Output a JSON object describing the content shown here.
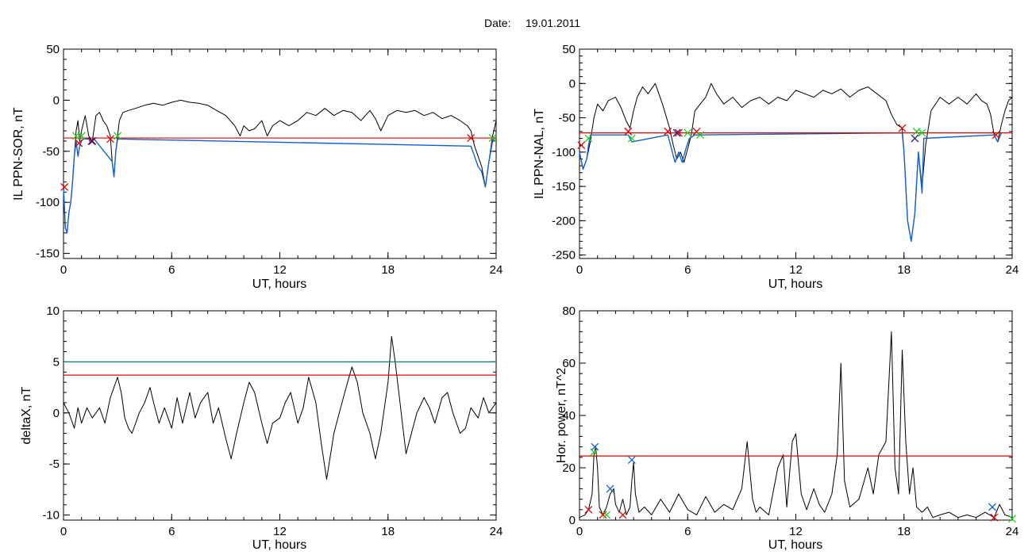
{
  "header": {
    "date_label": "Date:",
    "date_value": "19.01.2011"
  },
  "chart_data": [
    {
      "id": "p1",
      "type": "line",
      "xlabel": "UT, hours",
      "ylabel": "IL PPN-SOR, nT",
      "xlim": [
        0,
        24
      ],
      "ylim": [
        -155,
        50
      ],
      "xticks": [
        0,
        6,
        12,
        18,
        24
      ],
      "yticks": [
        -150,
        -100,
        -50,
        0,
        50
      ],
      "threshold": {
        "value": -37,
        "color": "#e00000"
      },
      "series": [
        {
          "color": "#000000",
          "x": [
            0,
            0.1,
            0.2,
            0.3,
            0.4,
            0.5,
            0.6,
            0.7,
            0.8,
            0.9,
            1.0,
            1.2,
            1.4,
            1.6,
            1.8,
            2.0,
            2.2,
            2.4,
            2.6,
            2.7,
            2.8,
            2.9,
            3.0,
            3.1,
            3.3,
            3.6,
            4.0,
            4.5,
            5.0,
            5.5,
            6.0,
            6.5,
            7.0,
            7.5,
            8.0,
            8.5,
            9.0,
            9.5,
            9.8,
            10.0,
            10.3,
            10.6,
            11.0,
            11.3,
            11.6,
            12.0,
            12.5,
            13.0,
            13.5,
            14.0,
            14.5,
            15.0,
            15.5,
            16.0,
            16.5,
            17.0,
            17.3,
            17.6,
            18.0,
            18.5,
            19.0,
            19.5,
            20.0,
            20.5,
            21.0,
            21.5,
            22.0,
            22.4,
            22.6,
            22.8,
            23.0,
            23.2,
            23.4,
            23.6,
            23.8,
            24.0
          ],
          "y": [
            -85,
            -125,
            -130,
            -110,
            -100,
            -80,
            -55,
            -30,
            -20,
            -40,
            -30,
            -15,
            -35,
            -40,
            -15,
            -12,
            -20,
            -25,
            -35,
            -60,
            -75,
            -50,
            -35,
            -20,
            -12,
            -10,
            -8,
            -5,
            -3,
            -5,
            -2,
            0,
            -2,
            -3,
            -5,
            -10,
            -15,
            -25,
            -35,
            -25,
            -30,
            -28,
            -20,
            -35,
            -25,
            -20,
            -25,
            -20,
            -12,
            -15,
            -8,
            -15,
            -10,
            -12,
            -20,
            -10,
            -18,
            -30,
            -15,
            -10,
            -12,
            -10,
            -15,
            -12,
            -18,
            -15,
            -20,
            -25,
            -30,
            -45,
            -55,
            -65,
            -85,
            -60,
            -35,
            -20
          ]
        },
        {
          "color": "#1060d0",
          "x": [
            0,
            0.1,
            0.2,
            0.3,
            0.4,
            0.5,
            0.6,
            0.7,
            0.8,
            0.9,
            1.0,
            1.1,
            1.4,
            1.5,
            1.6,
            1.7,
            2.7,
            2.8,
            2.9,
            3.0,
            22.6,
            22.8,
            23.0,
            23.2,
            23.4,
            23.6,
            23.8,
            23.9
          ],
          "y": [
            -85,
            -125,
            -130,
            -110,
            -100,
            -80,
            -55,
            -40,
            -55,
            -45,
            -40,
            -38,
            -38,
            -42,
            -40,
            -38,
            -60,
            -75,
            -50,
            -38,
            -45,
            -55,
            -65,
            -70,
            -85,
            -60,
            -40,
            -37
          ]
        }
      ],
      "markers": [
        {
          "x": 0.05,
          "y": -85,
          "color": "#e00000"
        },
        {
          "x": 0.7,
          "y": -35,
          "color": "#22cc22"
        },
        {
          "x": 0.85,
          "y": -42,
          "color": "#e00000"
        },
        {
          "x": 1.0,
          "y": -35,
          "color": "#22cc22"
        },
        {
          "x": 1.55,
          "y": -40,
          "color": "#e00000"
        },
        {
          "x": 1.6,
          "y": -40,
          "color": "#1a1a8a"
        },
        {
          "x": 2.6,
          "y": -38,
          "color": "#e00000"
        },
        {
          "x": 3.0,
          "y": -35,
          "color": "#22cc22"
        },
        {
          "x": 22.6,
          "y": -37,
          "color": "#e00000"
        },
        {
          "x": 23.8,
          "y": -37,
          "color": "#22cc22"
        }
      ]
    },
    {
      "id": "p2",
      "type": "line",
      "xlabel": "UT, hours",
      "ylabel": "IL PPN-NAL, nT",
      "xlim": [
        0,
        24
      ],
      "ylim": [
        -255,
        50
      ],
      "xticks": [
        0,
        6,
        12,
        18,
        24
      ],
      "yticks": [
        -250,
        -200,
        -150,
        -100,
        -50,
        0,
        50
      ],
      "threshold": {
        "value": -72,
        "color": "#e00000"
      },
      "series": [
        {
          "color": "#000000",
          "x": [
            0,
            0.2,
            0.4,
            0.6,
            0.8,
            1.0,
            1.3,
            1.6,
            2.0,
            2.3,
            2.6,
            2.8,
            3.0,
            3.2,
            3.5,
            3.8,
            4.2,
            4.6,
            5.0,
            5.2,
            5.4,
            5.6,
            5.8,
            6.0,
            6.2,
            6.4,
            6.7,
            7.0,
            7.3,
            7.6,
            8.0,
            8.5,
            9.0,
            9.5,
            10.0,
            10.5,
            11.0,
            11.5,
            12.0,
            12.5,
            13.0,
            13.5,
            14.0,
            14.5,
            15.0,
            15.5,
            16.0,
            16.5,
            17.0,
            17.3,
            17.6,
            17.9,
            18.0,
            18.2,
            18.4,
            18.6,
            18.8,
            19.0,
            19.2,
            19.5,
            20.0,
            20.5,
            21.0,
            21.5,
            22.0,
            22.3,
            22.6,
            22.8,
            23.0,
            23.2,
            23.4,
            23.6,
            23.8,
            24.0
          ],
          "y": [
            -100,
            -125,
            -110,
            -85,
            -50,
            -30,
            -40,
            -25,
            -20,
            -35,
            -55,
            -65,
            -40,
            -20,
            -5,
            -15,
            0,
            -30,
            -65,
            -90,
            -110,
            -100,
            -115,
            -95,
            -75,
            -40,
            -30,
            -20,
            0,
            -15,
            -30,
            -20,
            -35,
            -25,
            -20,
            -30,
            -20,
            -25,
            -10,
            -15,
            -20,
            -10,
            -15,
            -8,
            -20,
            -10,
            -5,
            -15,
            -25,
            -45,
            -60,
            -65,
            -100,
            -200,
            -230,
            -190,
            -100,
            -150,
            -90,
            -40,
            -20,
            -30,
            -20,
            -30,
            -15,
            -25,
            -30,
            -45,
            -75,
            -85,
            -60,
            -40,
            -25,
            -20
          ]
        },
        {
          "color": "#1060d0",
          "x": [
            0,
            0.2,
            0.4,
            0.5,
            0.6,
            2.7,
            2.8,
            2.9,
            4.9,
            5.1,
            5.3,
            5.5,
            5.7,
            5.9,
            6.1,
            6.4,
            6.6,
            17.9,
            18.0,
            18.2,
            18.4,
            18.6,
            18.8,
            19.0,
            19.1,
            23.0,
            23.2,
            23.4
          ],
          "y": [
            -100,
            -125,
            -110,
            -90,
            -75,
            -75,
            -80,
            -85,
            -75,
            -95,
            -115,
            -100,
            -115,
            -95,
            -80,
            -75,
            -75,
            -72,
            -100,
            -200,
            -230,
            -190,
            -100,
            -160,
            -80,
            -75,
            -85,
            -72
          ]
        }
      ],
      "markers": [
        {
          "x": 0.1,
          "y": -90,
          "color": "#e00000"
        },
        {
          "x": 0.5,
          "y": -80,
          "color": "#22cc22"
        },
        {
          "x": 2.7,
          "y": -70,
          "color": "#e00000"
        },
        {
          "x": 2.9,
          "y": -80,
          "color": "#22cc22"
        },
        {
          "x": 4.9,
          "y": -70,
          "color": "#e00000"
        },
        {
          "x": 5.4,
          "y": -72,
          "color": "#1a1a8a"
        },
        {
          "x": 5.5,
          "y": -72,
          "color": "#e00000"
        },
        {
          "x": 6.0,
          "y": -72,
          "color": "#22cc22"
        },
        {
          "x": 6.5,
          "y": -70,
          "color": "#e00000"
        },
        {
          "x": 6.7,
          "y": -75,
          "color": "#22cc22"
        },
        {
          "x": 17.9,
          "y": -65,
          "color": "#e00000"
        },
        {
          "x": 18.6,
          "y": -80,
          "color": "#1a1a8a"
        },
        {
          "x": 18.7,
          "y": -70,
          "color": "#22cc22"
        },
        {
          "x": 19.0,
          "y": -72,
          "color": "#22cc22"
        },
        {
          "x": 23.1,
          "y": -75,
          "color": "#e00000"
        }
      ]
    },
    {
      "id": "p3",
      "type": "line",
      "xlabel": "UT, hours",
      "ylabel": "deltaX, nT",
      "xlim": [
        0,
        24
      ],
      "ylim": [
        -10.5,
        10
      ],
      "xticks": [
        0,
        6,
        12,
        18,
        24
      ],
      "yticks": [
        -10,
        -5,
        0,
        5,
        10
      ],
      "hlines": [
        {
          "value": 5,
          "color": "#108080"
        },
        {
          "value": 3.7,
          "color": "#e00000"
        }
      ],
      "series": [
        {
          "color": "#000000",
          "x": [
            0,
            0.3,
            0.6,
            0.8,
            1.0,
            1.3,
            1.6,
            2.0,
            2.3,
            2.6,
            2.8,
            3.0,
            3.2,
            3.4,
            3.6,
            3.8,
            4.2,
            4.5,
            4.8,
            5.0,
            5.3,
            5.6,
            6.0,
            6.3,
            6.6,
            7.0,
            7.3,
            7.6,
            8.0,
            8.3,
            8.6,
            9.0,
            9.3,
            9.6,
            10.0,
            10.3,
            10.6,
            11.0,
            11.3,
            11.6,
            12.0,
            12.3,
            12.6,
            13.0,
            13.3,
            13.6,
            14.0,
            14.3,
            14.6,
            15.0,
            15.3,
            15.6,
            16.0,
            16.3,
            16.6,
            17.0,
            17.3,
            17.6,
            18.0,
            18.2,
            18.4,
            18.6,
            18.8,
            19.0,
            19.3,
            19.6,
            20.0,
            20.3,
            20.6,
            21.0,
            21.3,
            21.6,
            22.0,
            22.3,
            22.6,
            23.0,
            23.3,
            23.6,
            24.0
          ],
          "y": [
            1,
            0,
            -1.5,
            0.5,
            -1,
            0.5,
            -0.5,
            0.5,
            -1,
            1.5,
            2.5,
            3.5,
            2,
            -0.5,
            -1.5,
            -2,
            0,
            1,
            2.5,
            1,
            -1,
            0.5,
            -1.5,
            1.5,
            -1,
            2,
            -0.5,
            1,
            2,
            -1,
            0.5,
            -2.5,
            -4.5,
            -2,
            1,
            3,
            2,
            -1,
            -3,
            -1,
            -0.5,
            1,
            2,
            -1,
            0.5,
            3.5,
            1,
            -3,
            -6.5,
            -2,
            0,
            2,
            4.5,
            3,
            0,
            -2,
            -4.5,
            -2,
            3,
            7.5,
            5,
            2,
            -1,
            -4,
            -2,
            0,
            1.5,
            0.5,
            -1,
            1.5,
            2,
            0,
            -2,
            -1.5,
            0.5,
            -0.5,
            1.5,
            0,
            1
          ]
        }
      ],
      "markers": []
    },
    {
      "id": "p4",
      "type": "line",
      "xlabel": "UT, hours",
      "ylabel": "Hor. power, nT^2",
      "xlim": [
        0,
        24
      ],
      "ylim": [
        0,
        80
      ],
      "xticks": [
        0,
        6,
        12,
        18,
        24
      ],
      "yticks": [
        0,
        20,
        40,
        60,
        80
      ],
      "threshold": {
        "value": 24.5,
        "color": "#e00000"
      },
      "series": [
        {
          "color": "#000000",
          "x": [
            0,
            0.3,
            0.5,
            0.7,
            0.8,
            0.9,
            1.0,
            1.1,
            1.3,
            1.5,
            1.7,
            1.9,
            2.0,
            2.2,
            2.4,
            2.6,
            2.8,
            2.9,
            3.0,
            3.1,
            3.3,
            3.6,
            4.0,
            4.5,
            5.0,
            5.5,
            6.0,
            6.5,
            7.0,
            7.5,
            8.0,
            8.5,
            9.0,
            9.3,
            9.6,
            9.8,
            10.0,
            10.5,
            11.0,
            11.3,
            11.5,
            11.8,
            12.0,
            12.3,
            12.6,
            13.0,
            13.3,
            13.6,
            14.0,
            14.3,
            14.5,
            14.7,
            15.0,
            15.5,
            16.0,
            16.3,
            16.6,
            17.0,
            17.3,
            17.5,
            17.7,
            17.9,
            18.1,
            18.3,
            18.5,
            18.7,
            19.0,
            19.3,
            19.6,
            20.0,
            20.5,
            21.0,
            21.5,
            22.0,
            22.5,
            23.0,
            23.3,
            23.6,
            24.0
          ],
          "y": [
            1,
            2,
            4,
            10,
            25,
            28,
            20,
            5,
            2,
            5,
            10,
            12,
            6,
            3,
            8,
            2,
            5,
            15,
            22,
            10,
            3,
            5,
            2,
            8,
            3,
            10,
            4,
            2,
            9,
            3,
            6,
            4,
            12,
            30,
            8,
            3,
            5,
            2,
            20,
            25,
            5,
            30,
            33,
            10,
            4,
            12,
            6,
            3,
            10,
            25,
            60,
            15,
            5,
            8,
            20,
            10,
            25,
            30,
            72,
            20,
            10,
            65,
            30,
            10,
            20,
            5,
            3,
            5,
            1,
            2,
            3,
            1,
            2,
            1,
            3,
            1,
            6,
            2,
            1
          ]
        }
      ],
      "markers": [
        {
          "x": 0.5,
          "y": 4,
          "color": "#e00000"
        },
        {
          "x": 0.8,
          "y": 26,
          "color": "#22cc22"
        },
        {
          "x": 0.85,
          "y": 28,
          "color": "#1060d0"
        },
        {
          "x": 1.3,
          "y": 2,
          "color": "#e00000"
        },
        {
          "x": 1.5,
          "y": 2,
          "color": "#22cc22"
        },
        {
          "x": 1.7,
          "y": 12,
          "color": "#1060d0"
        },
        {
          "x": 2.4,
          "y": 2,
          "color": "#e00000"
        },
        {
          "x": 2.9,
          "y": 23,
          "color": "#1060d0"
        },
        {
          "x": 22.9,
          "y": 5,
          "color": "#1060d0"
        },
        {
          "x": 23.0,
          "y": 1,
          "color": "#e00000"
        },
        {
          "x": 24.0,
          "y": 0.5,
          "color": "#22cc22"
        }
      ]
    }
  ]
}
